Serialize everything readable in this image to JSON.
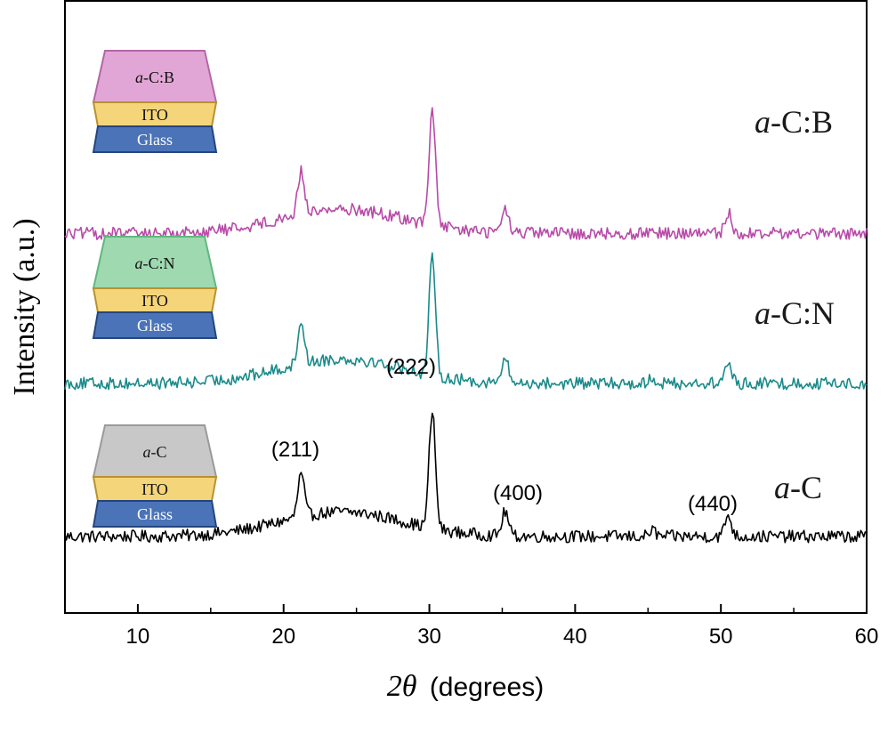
{
  "chart_data": {
    "type": "line",
    "title": "",
    "xlabel_prefix": "2θ",
    "xlabel_unit": "(degrees)",
    "ylabel": "Intensity (a.u.)",
    "xlim": [
      5,
      60
    ],
    "xticks": [
      "10",
      "20",
      "30",
      "40",
      "50",
      "60"
    ],
    "xtick_values": [
      10,
      20,
      30,
      40,
      50,
      60
    ],
    "ylim": [
      0,
      100
    ],
    "x_step": 0.1,
    "series": [
      {
        "name": "a-C",
        "italic": "a",
        "rest": "-C",
        "color": "#000000",
        "baseline": 12.5,
        "hump_height": 4,
        "noise": 1.0,
        "peaks": [
          {
            "x": 21.2,
            "height": 7
          },
          {
            "x": 30.2,
            "height": 19
          },
          {
            "x": 35.2,
            "height": 4
          },
          {
            "x": 45.3,
            "height": 1
          },
          {
            "x": 50.5,
            "height": 3.5
          }
        ]
      },
      {
        "name": "a-C:N",
        "italic": "a",
        "rest": "-C:N",
        "color": "#1a8a8a",
        "baseline": 37.5,
        "hump_height": 4,
        "noise": 1.0,
        "peaks": [
          {
            "x": 21.2,
            "height": 7
          },
          {
            "x": 30.2,
            "height": 19
          },
          {
            "x": 35.2,
            "height": 4
          },
          {
            "x": 45.3,
            "height": 1
          },
          {
            "x": 50.5,
            "height": 3.5
          }
        ]
      },
      {
        "name": "a-C:B",
        "italic": "a",
        "rest": "-C:B",
        "color": "#b84aa8",
        "baseline": 62,
        "hump_height": 4,
        "noise": 1.0,
        "peaks": [
          {
            "x": 21.2,
            "height": 7
          },
          {
            "x": 30.2,
            "height": 19
          },
          {
            "x": 35.2,
            "height": 4
          },
          {
            "x": 45.3,
            "height": 1
          },
          {
            "x": 50.5,
            "height": 3.5
          }
        ]
      }
    ],
    "peak_labels": [
      "(211)",
      "(222)",
      "(400)",
      "(440)"
    ],
    "stacks": [
      {
        "top_italic": "a",
        "top_rest": "-C",
        "top_color": "#c8c8c8",
        "top_border": "#9a9a9a",
        "mid": "ITO",
        "bottom": "Glass"
      },
      {
        "top_italic": "a",
        "top_rest": "-C:N",
        "top_color": "#9ed9b0",
        "top_border": "#5fb87e",
        "mid": "ITO",
        "bottom": "Glass"
      },
      {
        "top_italic": "a",
        "top_rest": "-C:B",
        "top_color": "#e2a6d6",
        "top_border": "#b466a6",
        "mid": "ITO",
        "bottom": "Glass"
      }
    ],
    "ito_color": "#f5d57a",
    "ito_border": "#b8912f",
    "glass_color": "#4a73b8",
    "glass_border": "#24457e",
    "glass_text_color": "#ffffff"
  }
}
